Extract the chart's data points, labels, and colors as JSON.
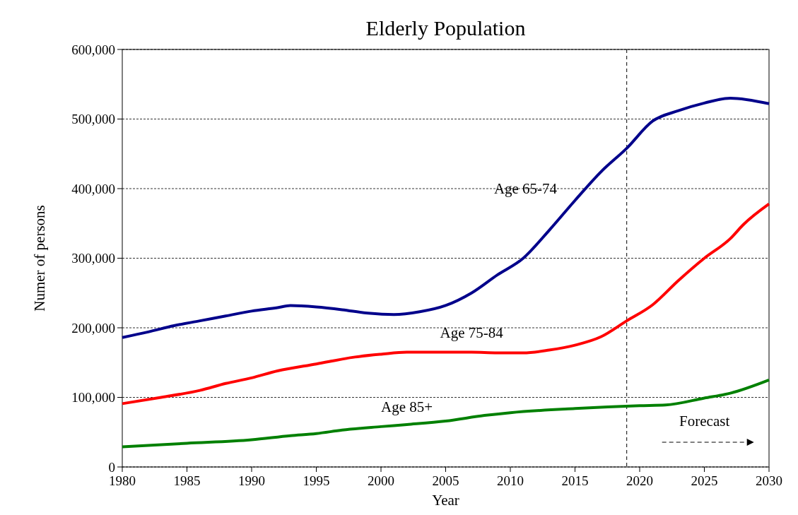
{
  "chart_data": {
    "type": "line",
    "title": "Elderly Population",
    "xlabel": "Year",
    "ylabel": "Numer of persons",
    "xlim": [
      1980,
      2030
    ],
    "xticks": [
      1980,
      1985,
      1990,
      1995,
      2000,
      2005,
      2010,
      2015,
      2020,
      2025,
      2030
    ],
    "ylim": [
      0,
      600000
    ],
    "yticks": [
      {
        "value": 0,
        "label": "0"
      },
      {
        "value": 100000,
        "label": "100,000"
      },
      {
        "value": 200000,
        "label": "200,000"
      },
      {
        "value": 300000,
        "label": "300,000"
      },
      {
        "value": 400000,
        "label": "400,000"
      },
      {
        "value": 500000,
        "label": "500,000"
      },
      {
        "value": 600000,
        "label": "600,000"
      }
    ],
    "grid": "y",
    "marker": "none",
    "line_style": "solid",
    "series": [
      {
        "name": "Age 65-74",
        "color": "#00008b",
        "x": [
          1980,
          1982,
          1984,
          1986,
          1988,
          1990,
          1992,
          1993,
          1995,
          1997,
          1999,
          2001,
          2003,
          2005,
          2007,
          2009,
          2011,
          2013,
          2015,
          2017,
          2019,
          2021,
          2023,
          2025,
          2027,
          2030
        ],
        "values": [
          186000,
          194000,
          203000,
          210000,
          217000,
          224000,
          229000,
          232000,
          230000,
          226000,
          221000,
          219000,
          223000,
          232000,
          250000,
          276000,
          300000,
          340000,
          383000,
          424000,
          458000,
          497000,
          512000,
          523000,
          530000,
          522000
        ]
      },
      {
        "name": "Age 75-84",
        "color": "#ff0000",
        "x": [
          1980,
          1983,
          1986,
          1988,
          1990,
          1992,
          1995,
          1998,
          2000,
          2002,
          2005,
          2007,
          2009,
          2011,
          2013,
          2015,
          2017,
          2019,
          2021,
          2023,
          2025,
          2027,
          2028,
          2030
        ],
        "values": [
          91000,
          100000,
          110000,
          120000,
          128000,
          138000,
          148000,
          158000,
          162000,
          165000,
          165000,
          165000,
          164000,
          164000,
          168000,
          175000,
          187000,
          210000,
          233000,
          268000,
          300000,
          328000,
          348000,
          378000
        ]
      },
      {
        "name": "Age 85+",
        "color": "#008000",
        "x": [
          1980,
          1985,
          1990,
          1993,
          1995,
          1997,
          2000,
          2002,
          2005,
          2008,
          2010,
          2015,
          2020,
          2022,
          2025,
          2027,
          2030
        ],
        "values": [
          29000,
          34000,
          39000,
          45000,
          48000,
          53000,
          58000,
          61000,
          66000,
          74000,
          78000,
          84000,
          88000,
          89000,
          99000,
          106000,
          125000
        ]
      }
    ],
    "ref_lines": [
      {
        "axis": "x",
        "value": 2019,
        "color": "#000000",
        "line_style": "dashed"
      }
    ],
    "annotations": [
      "Forecast"
    ]
  }
}
